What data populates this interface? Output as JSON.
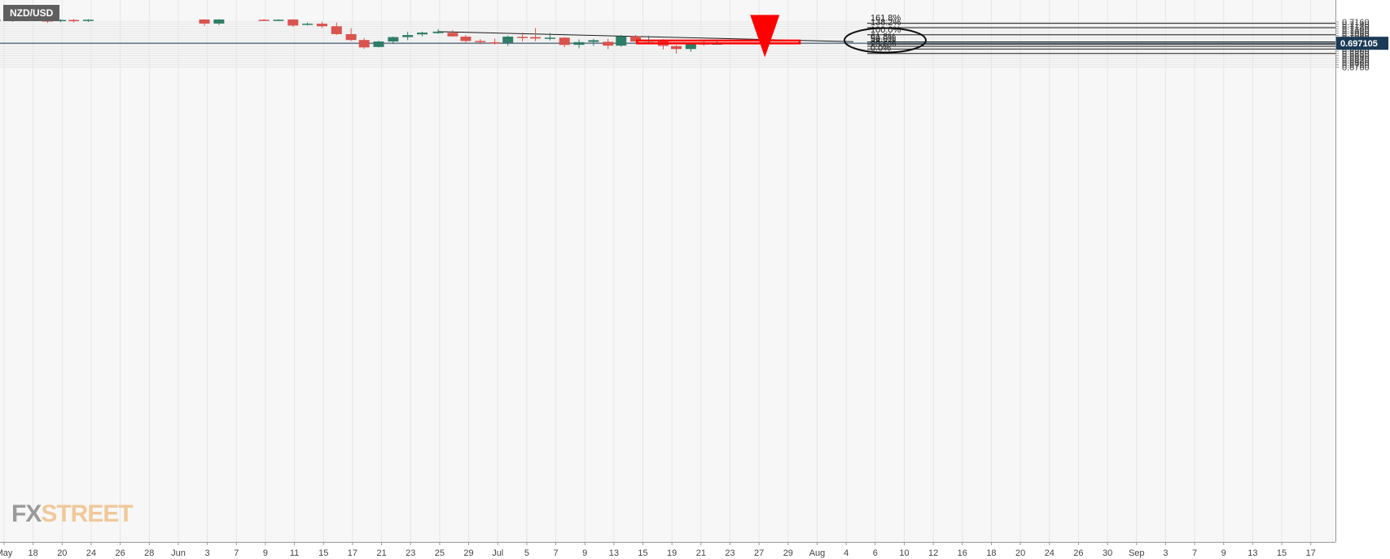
{
  "symbol": "NZD/USD",
  "brand": {
    "fx": "FX",
    "street": "STREET"
  },
  "current_price_label": "0.697105",
  "colors": {
    "bull": "#2f7d67",
    "bear": "#d9534f",
    "annotation": "#ff0000",
    "price_tag": "#1b3a57",
    "grid": "#e6e6e6",
    "background": "#f7f7f7"
  },
  "chart_data": {
    "type": "candlestick",
    "title": "NZD/USD",
    "ylim": [
      0.6745,
      0.7175
    ],
    "y_ticks": [
      "0.7160",
      "0.7140",
      "0.7120",
      "0.7100",
      "0.7080",
      "0.7060",
      "0.7040",
      "0.7020",
      "0.7000",
      "0.6980",
      "0.6960",
      "0.6940",
      "0.6920",
      "0.6900",
      "0.6880",
      "0.6860",
      "0.6840",
      "0.6820",
      "0.6800",
      "0.6780",
      "0.6760"
    ],
    "x_ticks": [
      {
        "label": "May",
        "t": 0
      },
      {
        "label": "18",
        "t": 2
      },
      {
        "label": "20",
        "t": 4
      },
      {
        "label": "24",
        "t": 6
      },
      {
        "label": "26",
        "t": 8
      },
      {
        "label": "28",
        "t": 10
      },
      {
        "label": "Jun",
        "t": 12
      },
      {
        "label": "3",
        "t": 14
      },
      {
        "label": "7",
        "t": 16
      },
      {
        "label": "9",
        "t": 18
      },
      {
        "label": "11",
        "t": 20
      },
      {
        "label": "15",
        "t": 22
      },
      {
        "label": "17",
        "t": 24
      },
      {
        "label": "21",
        "t": 26
      },
      {
        "label": "23",
        "t": 28
      },
      {
        "label": "25",
        "t": 30
      },
      {
        "label": "29",
        "t": 32
      },
      {
        "label": "Jul",
        "t": 34
      },
      {
        "label": "5",
        "t": 36
      },
      {
        "label": "7",
        "t": 38
      },
      {
        "label": "9",
        "t": 40
      },
      {
        "label": "13",
        "t": 42
      },
      {
        "label": "15",
        "t": 44
      },
      {
        "label": "19",
        "t": 46
      },
      {
        "label": "21",
        "t": 48
      },
      {
        "label": "23",
        "t": 50
      },
      {
        "label": "27",
        "t": 52
      },
      {
        "label": "29",
        "t": 54
      },
      {
        "label": "Aug",
        "t": 56
      },
      {
        "label": "4",
        "t": 58
      },
      {
        "label": "6",
        "t": 60
      },
      {
        "label": "10",
        "t": 62
      },
      {
        "label": "12",
        "t": 64
      },
      {
        "label": "16",
        "t": 66
      },
      {
        "label": "18",
        "t": 68
      },
      {
        "label": "20",
        "t": 70
      },
      {
        "label": "24",
        "t": 72
      },
      {
        "label": "26",
        "t": 74
      },
      {
        "label": "30",
        "t": 76
      },
      {
        "label": "Sep",
        "t": 78
      },
      {
        "label": "3",
        "t": 80
      },
      {
        "label": "7",
        "t": 82
      },
      {
        "label": "9",
        "t": 84
      },
      {
        "label": "13",
        "t": 86
      },
      {
        "label": "15",
        "t": 88
      },
      {
        "label": "17",
        "t": 90
      }
    ],
    "candles": [
      {
        "t": -0.6,
        "o": 0.7172,
        "h": 0.7185,
        "l": 0.7164,
        "c": 0.718
      },
      {
        "t": 0.6,
        "o": 0.7175,
        "h": 0.7185,
        "l": 0.7162,
        "c": 0.7182
      },
      {
        "t": 3.0,
        "o": 0.7175,
        "h": 0.7185,
        "l": 0.7152,
        "c": 0.7168
      },
      {
        "t": 3.9,
        "o": 0.7168,
        "h": 0.7185,
        "l": 0.7158,
        "c": 0.7178
      },
      {
        "t": 4.8,
        "o": 0.7178,
        "h": 0.7185,
        "l": 0.7155,
        "c": 0.717
      },
      {
        "t": 5.8,
        "o": 0.7172,
        "h": 0.7185,
        "l": 0.716,
        "c": 0.718
      },
      {
        "t": 13.8,
        "o": 0.7182,
        "h": 0.7185,
        "l": 0.7126,
        "c": 0.7146
      },
      {
        "t": 14.8,
        "o": 0.7146,
        "h": 0.7185,
        "l": 0.7132,
        "c": 0.7182
      },
      {
        "t": 17.9,
        "o": 0.718,
        "h": 0.7185,
        "l": 0.7168,
        "c": 0.7176
      },
      {
        "t": 18.9,
        "o": 0.7176,
        "h": 0.7185,
        "l": 0.7168,
        "c": 0.718
      },
      {
        "t": 19.9,
        "o": 0.7182,
        "h": 0.7185,
        "l": 0.7116,
        "c": 0.7128
      },
      {
        "t": 20.9,
        "o": 0.7135,
        "h": 0.7155,
        "l": 0.7128,
        "c": 0.7145
      },
      {
        "t": 21.9,
        "o": 0.7145,
        "h": 0.7162,
        "l": 0.7105,
        "c": 0.7122
      },
      {
        "t": 22.9,
        "o": 0.7122,
        "h": 0.7155,
        "l": 0.7045,
        "c": 0.7052
      },
      {
        "t": 23.9,
        "o": 0.7052,
        "h": 0.7105,
        "l": 0.699,
        "c": 0.7
      },
      {
        "t": 24.8,
        "o": 0.7,
        "h": 0.7017,
        "l": 0.6923,
        "c": 0.6934
      },
      {
        "t": 25.8,
        "o": 0.6938,
        "h": 0.6993,
        "l": 0.6934,
        "c": 0.6987
      },
      {
        "t": 26.8,
        "o": 0.6987,
        "h": 0.703,
        "l": 0.6963,
        "c": 0.7026
      },
      {
        "t": 27.8,
        "o": 0.7026,
        "h": 0.7073,
        "l": 0.6998,
        "c": 0.7044
      },
      {
        "t": 28.8,
        "o": 0.705,
        "h": 0.7074,
        "l": 0.7033,
        "c": 0.7066
      },
      {
        "t": 29.9,
        "o": 0.7061,
        "h": 0.7097,
        "l": 0.7055,
        "c": 0.7074
      },
      {
        "t": 30.9,
        "o": 0.7064,
        "h": 0.7088,
        "l": 0.703,
        "c": 0.7032
      },
      {
        "t": 31.8,
        "o": 0.703,
        "h": 0.7044,
        "l": 0.6978,
        "c": 0.6991
      },
      {
        "t": 32.8,
        "o": 0.6991,
        "h": 0.7008,
        "l": 0.6963,
        "c": 0.698
      },
      {
        "t": 33.8,
        "o": 0.698,
        "h": 0.7012,
        "l": 0.696,
        "c": 0.6976
      },
      {
        "t": 34.7,
        "o": 0.6976,
        "h": 0.7039,
        "l": 0.6948,
        "c": 0.703
      },
      {
        "t": 35.7,
        "o": 0.7028,
        "h": 0.7066,
        "l": 0.6988,
        "c": 0.7026
      },
      {
        "t": 36.6,
        "o": 0.7026,
        "h": 0.7106,
        "l": 0.699,
        "c": 0.7013
      },
      {
        "t": 37.6,
        "o": 0.7013,
        "h": 0.7063,
        "l": 0.6995,
        "c": 0.7021
      },
      {
        "t": 38.6,
        "o": 0.7021,
        "h": 0.7025,
        "l": 0.6936,
        "c": 0.6956
      },
      {
        "t": 39.6,
        "o": 0.6957,
        "h": 0.7005,
        "l": 0.6926,
        "c": 0.6981
      },
      {
        "t": 40.6,
        "o": 0.6983,
        "h": 0.701,
        "l": 0.6948,
        "c": 0.6998
      },
      {
        "t": 41.6,
        "o": 0.6984,
        "h": 0.701,
        "l": 0.6919,
        "c": 0.695
      },
      {
        "t": 42.5,
        "o": 0.695,
        "h": 0.7046,
        "l": 0.694,
        "c": 0.7033
      },
      {
        "t": 43.5,
        "o": 0.7033,
        "h": 0.7046,
        "l": 0.6983,
        "c": 0.6986
      },
      {
        "t": 44.4,
        "o": 0.6985,
        "h": 0.7038,
        "l": 0.697,
        "c": 0.6998
      },
      {
        "t": 45.4,
        "o": 0.7003,
        "h": 0.7007,
        "l": 0.6916,
        "c": 0.6948
      },
      {
        "t": 46.3,
        "o": 0.6946,
        "h": 0.6956,
        "l": 0.688,
        "c": 0.692
      },
      {
        "t": 47.3,
        "o": 0.692,
        "h": 0.6978,
        "l": 0.6895,
        "c": 0.697
      },
      {
        "t": 48.2,
        "o": 0.697,
        "h": 0.6987,
        "l": 0.6948,
        "c": 0.6966
      },
      {
        "t": 49.1,
        "o": 0.6966,
        "h": 0.6993,
        "l": 0.6961,
        "c": 0.6969
      }
    ],
    "trendline": {
      "from": {
        "t": 29.9,
        "y": 0.7074
      },
      "to": {
        "t": 58.5,
        "y": 0.6985
      }
    },
    "fib_levels": [
      {
        "label": "161.8%",
        "y": 0.71485
      },
      {
        "label": "138.2%",
        "y": 0.71095
      },
      {
        "label": "100.0%",
        "y": 0.7046
      },
      {
        "label": "61.8%",
        "y": 0.6983
      },
      {
        "label": "50.0%",
        "y": 0.69635
      },
      {
        "label": "38.2%",
        "y": 0.6944
      },
      {
        "label": "23.6%",
        "y": 0.69198
      },
      {
        "label": "0.0%",
        "y": 0.68805
      }
    ],
    "current_price": 0.697105,
    "resistance_box": {
      "t0": 43.6,
      "t1": 54.8,
      "y0": 0.6995,
      "y1": 0.69705
    },
    "arrow": {
      "t": 52.4,
      "y_from": 0.6964,
      "y_to": 0.6847
    },
    "circle_level": "61.8%"
  }
}
